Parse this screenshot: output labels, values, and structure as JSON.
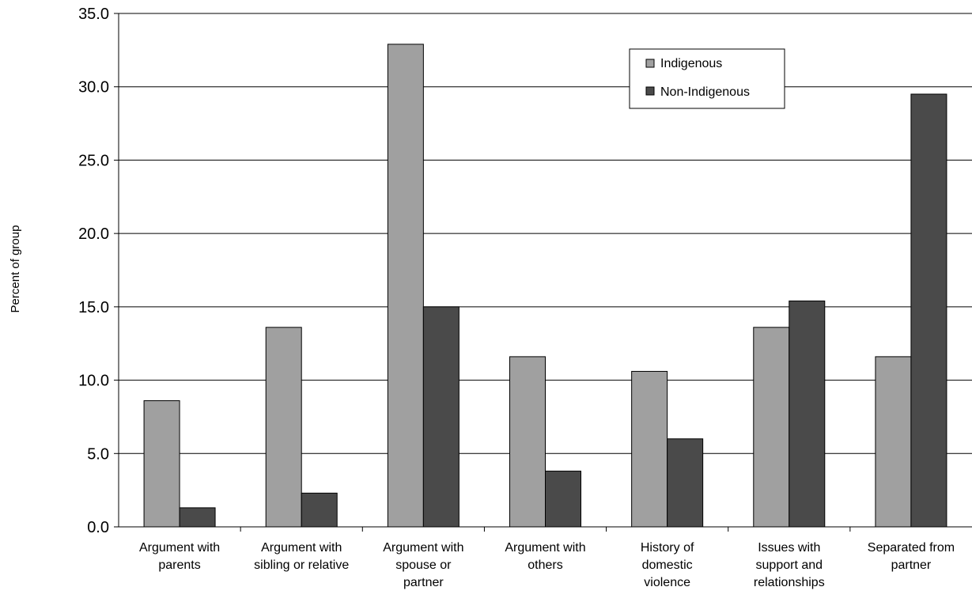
{
  "chart_data": {
    "type": "bar",
    "title": "",
    "xlabel": "",
    "ylabel": "Percent of group",
    "ylim": [
      0,
      35
    ],
    "y_ticks": [
      "0.0",
      "5.0",
      "10.0",
      "15.0",
      "20.0",
      "25.0",
      "30.0",
      "35.0"
    ],
    "grid": true,
    "legend_position": "top-right",
    "categories": [
      [
        "Argument with",
        "parents"
      ],
      [
        "Argument with",
        "sibling or relative"
      ],
      [
        "Argument with",
        "spouse or",
        "partner"
      ],
      [
        "Argument with",
        "others"
      ],
      [
        "History of",
        "domestic",
        "violence"
      ],
      [
        "Issues with",
        "support and",
        "relationships"
      ],
      [
        "Separated from",
        "partner"
      ]
    ],
    "series": [
      {
        "name": "Indigenous",
        "color": "#a0a0a0",
        "values": [
          8.6,
          13.6,
          32.9,
          11.6,
          10.6,
          13.6,
          11.6
        ]
      },
      {
        "name": "Non-Indigenous",
        "color": "#4a4a4a",
        "values": [
          1.3,
          2.3,
          15.0,
          3.8,
          6.0,
          15.4,
          29.5
        ]
      }
    ]
  }
}
